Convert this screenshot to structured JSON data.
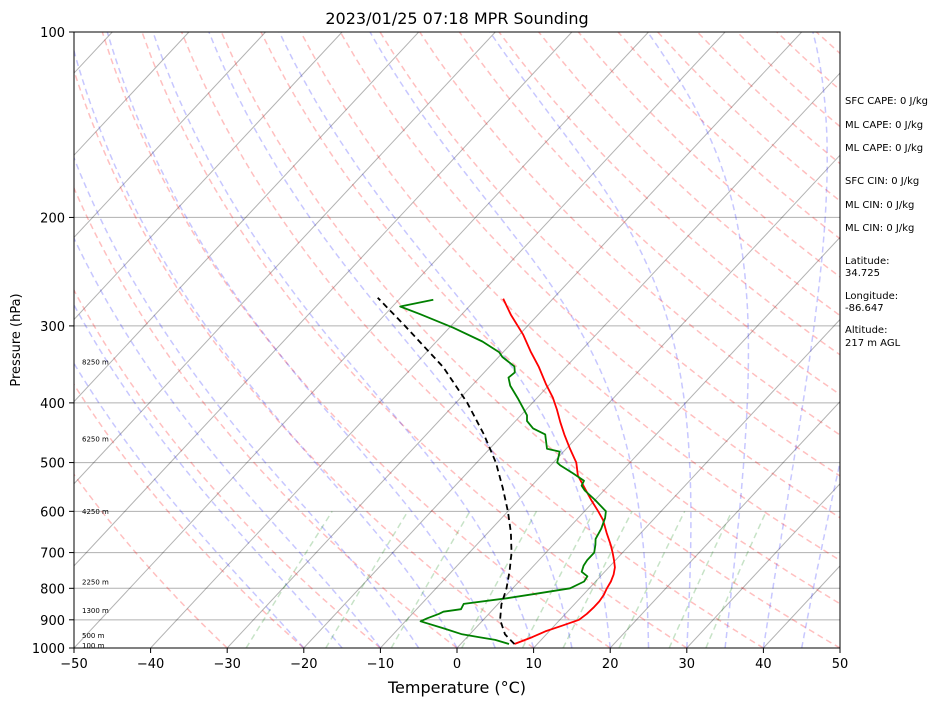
{
  "chart_data": {
    "type": "line",
    "title": "2023/01/25 07:18 MPR Sounding",
    "xlabel": "Temperature (°C)",
    "ylabel": "Pressure (hPa)",
    "xlim": [
      -50,
      50
    ],
    "ylim": [
      1000,
      100
    ],
    "y_scale": "log",
    "x_ticks": [
      "−50",
      "−40",
      "−30",
      "−20",
      "−10",
      "0",
      "10",
      "20",
      "30",
      "40",
      "50"
    ],
    "y_ticks": [
      "100",
      "200",
      "300",
      "400",
      "500",
      "600",
      "700",
      "800",
      "900",
      "1000"
    ],
    "grid": true,
    "skew_t": true,
    "series": [
      {
        "role": "temperature",
        "color": "#ff0000",
        "points": [
          [
            7.0,
            985
          ],
          [
            8.5,
            960
          ],
          [
            9.5,
            940
          ],
          [
            11.0,
            920
          ],
          [
            12.5,
            900
          ],
          [
            12.8,
            880
          ],
          [
            12.9,
            860
          ],
          [
            12.9,
            840
          ],
          [
            12.7,
            820
          ],
          [
            12.3,
            800
          ],
          [
            12.0,
            780
          ],
          [
            11.5,
            760
          ],
          [
            10.8,
            740
          ],
          [
            9.8,
            720
          ],
          [
            8.7,
            700
          ],
          [
            7.5,
            680
          ],
          [
            5.5,
            650
          ],
          [
            3.5,
            620
          ],
          [
            1.8,
            600
          ],
          [
            -0.5,
            575
          ],
          [
            -2.8,
            550
          ],
          [
            -5.2,
            525
          ],
          [
            -7.0,
            500
          ],
          [
            -9.5,
            475
          ],
          [
            -12.0,
            450
          ],
          [
            -14.0,
            430
          ],
          [
            -16.0,
            410
          ],
          [
            -18.0,
            392
          ],
          [
            -20.5,
            373
          ],
          [
            -23.5,
            350
          ],
          [
            -26.5,
            330
          ],
          [
            -29.5,
            310
          ],
          [
            -33.5,
            288
          ],
          [
            -36.5,
            271
          ]
        ]
      },
      {
        "role": "dewpoint",
        "color": "#008000",
        "points": [
          [
            6.3,
            985
          ],
          [
            4.0,
            970
          ],
          [
            1.5,
            960
          ],
          [
            -1.0,
            950
          ],
          [
            -4.0,
            930
          ],
          [
            -8.0,
            905
          ],
          [
            -7.5,
            895
          ],
          [
            -6.5,
            880
          ],
          [
            -6.2,
            873
          ],
          [
            -4.2,
            865
          ],
          [
            -4.5,
            848
          ],
          [
            0.5,
            830
          ],
          [
            4.0,
            815
          ],
          [
            7.5,
            800
          ],
          [
            8.5,
            780
          ],
          [
            8.3,
            765
          ],
          [
            7.0,
            752
          ],
          [
            6.5,
            735
          ],
          [
            6.3,
            720
          ],
          [
            6.3,
            700
          ],
          [
            5.5,
            680
          ],
          [
            4.8,
            665
          ],
          [
            4.3,
            640
          ],
          [
            3.5,
            615
          ],
          [
            2.8,
            600
          ],
          [
            0.0,
            575
          ],
          [
            -2.5,
            555
          ],
          [
            -3.5,
            545
          ],
          [
            -3.8,
            535
          ],
          [
            -6.2,
            520
          ],
          [
            -8.8,
            505
          ],
          [
            -9.5,
            500
          ],
          [
            -10.5,
            480
          ],
          [
            -12.5,
            475
          ],
          [
            -14.5,
            450
          ],
          [
            -16.8,
            440
          ],
          [
            -18.5,
            428
          ],
          [
            -19.2,
            419
          ],
          [
            -21.2,
            403
          ],
          [
            -22.5,
            393
          ],
          [
            -25.0,
            375
          ],
          [
            -26.2,
            364
          ],
          [
            -26.0,
            357
          ],
          [
            -26.8,
            349
          ],
          [
            -29.5,
            337
          ],
          [
            -30.5,
            331
          ],
          [
            -34.0,
            318
          ],
          [
            -39.5,
            302
          ],
          [
            -45.5,
            287
          ],
          [
            -49.0,
            279
          ],
          [
            -45.5,
            272
          ]
        ]
      },
      {
        "role": "parcel",
        "color": "#000000",
        "style": "dashed",
        "points": [
          [
            7.0,
            985
          ],
          [
            4.6,
            950
          ],
          [
            2.2,
            900
          ],
          [
            0.5,
            850
          ],
          [
            -0.8,
            800
          ],
          [
            -2.5,
            750
          ],
          [
            -4.5,
            700
          ],
          [
            -7.0,
            650
          ],
          [
            -10.0,
            600
          ],
          [
            -13.5,
            550
          ],
          [
            -17.5,
            500
          ],
          [
            -22.5,
            450
          ],
          [
            -28.5,
            400
          ],
          [
            -36.0,
            350
          ],
          [
            -46.0,
            300
          ],
          [
            -53.0,
            270
          ]
        ]
      }
    ],
    "background_lines": {
      "dry_adiabats_color": "#ff0000",
      "moist_adiabats_color": "#0000ff",
      "mixing_ratio_color": "#008000",
      "isotherms_color": "#000000"
    },
    "height_annotations": [
      {
        "label": "100 m",
        "p": 988
      },
      {
        "label": "500 m",
        "p": 952
      },
      {
        "label": "1300 m",
        "p": 867
      },
      {
        "label": "2250 m",
        "p": 780
      },
      {
        "label": "4250 m",
        "p": 599
      },
      {
        "label": "6250 m",
        "p": 457
      },
      {
        "label": "8250 m",
        "p": 343
      }
    ],
    "side_info": [
      "SFC CAPE: 0 J/kg",
      "ML CAPE: 0 J/kg",
      "ML CAPE: 0 J/kg",
      "SFC CIN: 0 J/kg",
      "ML CIN: 0 J/kg",
      "ML CIN: 0 J/kg"
    ],
    "latitude": "Latitude:\n34.725",
    "longitude": "Longitude:\n-86.647",
    "altitude": "Altitude:\n217 m AGL"
  }
}
